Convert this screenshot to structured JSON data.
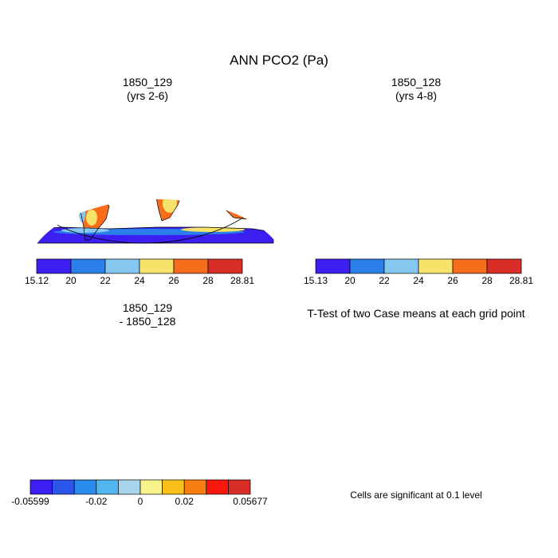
{
  "title": "ANN PCO2 (Pa)",
  "panels": [
    {
      "id": "case1",
      "title_line1": "1850_129",
      "title_line2": "(yrs 2-6)",
      "colorbar": {
        "min_label": "15.12",
        "labels": [
          "20",
          "22",
          "24",
          "26",
          "28"
        ],
        "max_label": "28.81",
        "colors": [
          "#3a1ef2",
          "#2a7fe8",
          "#86c7ef",
          "#f7e36a",
          "#f86d1b",
          "#d92d28"
        ]
      }
    },
    {
      "id": "case2",
      "title_line1": "1850_128",
      "title_line2": "(yrs 4-8)",
      "colorbar": {
        "min_label": "15.13",
        "labels": [
          "20",
          "22",
          "24",
          "26",
          "28"
        ],
        "max_label": "28.81",
        "colors": [
          "#3a1ef2",
          "#2a7fe8",
          "#86c7ef",
          "#f7e36a",
          "#f86d1b",
          "#d92d28"
        ]
      }
    },
    {
      "id": "diff",
      "title_line1": "1850_129",
      "title_line2": "- 1850_128",
      "colorbar": {
        "min_label": "-0.05599",
        "labels": [
          "-0.02",
          "0",
          "0.02"
        ],
        "max_label": "0.05677",
        "colors": [
          "#3a1ef2",
          "#2c55ea",
          "#2a8cec",
          "#51b6f0",
          "#a9d5ec",
          "#f7f38a",
          "#f9c01a",
          "#f87d10",
          "#f8160d",
          "#d92d28"
        ]
      }
    },
    {
      "id": "ttest",
      "title": "T-Test of two Case means at each grid point",
      "note": "Cells are significant at 0.1 level",
      "sig_color": "#e41212"
    }
  ]
}
